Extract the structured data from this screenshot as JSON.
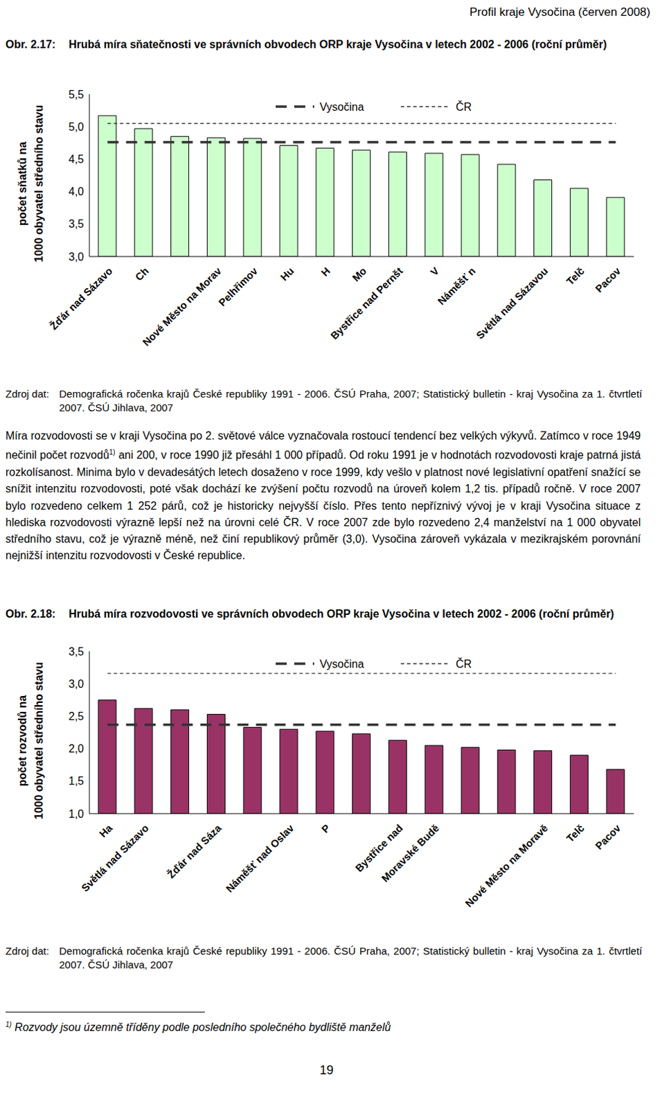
{
  "header": "Profil kraje Vysočina (červen 2008)",
  "chart_data": [
    {
      "type": "bar",
      "title": "Obr. 2.17: Hrubá míra sňatečnosti ve správních obvodech ORP kraje Vysočina v letech 2002 - 2006 (roční průměr)",
      "y_label": [
        "počet sňatků na",
        "1000 obyvatel středního stavu"
      ],
      "categories": [
        "Žďár nad Sázavo",
        "Ch",
        null,
        "Nové Město na Morav",
        "Pelhřimov",
        "Hu",
        "H",
        "Mo",
        "Bystřice nad Pernšt",
        "V",
        "Náměšť n",
        null,
        "Světlá nad Sázavou",
        "Telč",
        "Pacov"
      ],
      "values": [
        5.17,
        4.97,
        4.85,
        4.83,
        4.82,
        4.71,
        4.67,
        4.64,
        4.61,
        4.59,
        4.57,
        4.42,
        4.18,
        4.05,
        3.91
      ],
      "color": "#ccffcc",
      "series": [
        {
          "name": "Vysočina",
          "type": "line",
          "line_style": "dashed",
          "color": "#333333",
          "values": [
            4.76,
            4.76,
            4.76,
            4.76,
            4.76,
            4.76,
            4.76,
            4.76,
            4.76,
            4.76,
            4.76,
            4.76,
            4.76,
            4.76,
            4.76
          ]
        },
        {
          "name": "ČR",
          "type": "line",
          "line_style": "dotted",
          "color": "#333333",
          "values": [
            5.05,
            5.05,
            5.05,
            5.05,
            5.05,
            5.05,
            5.05,
            5.05,
            5.05,
            5.05,
            5.05,
            5.05,
            5.05,
            5.05,
            5.05
          ]
        }
      ],
      "ylim": [
        3,
        5.5
      ],
      "yticks": [
        {
          "value": 3,
          "label": "3,0"
        },
        {
          "value": 3.5,
          "label": "3,5"
        },
        {
          "value": 4,
          "label": "4,0"
        },
        {
          "value": 4.5,
          "label": "4,5"
        },
        {
          "value": 5,
          "label": "5,0"
        },
        {
          "value": 5.5,
          "label": "5,5"
        }
      ],
      "grid": false,
      "legend": "top"
    },
    {
      "type": "bar",
      "title": "Obr. 2.18: Hrubá míra rozvodovosti ve správních obvodech ORP kraje Vysočina v letech 2002 - 2006 (roční průměr)",
      "y_label": [
        "počet rozvodů na",
        "1000 obyvatel středního stavu"
      ],
      "categories": [
        "Ha",
        "Světlá nad Sázavo",
        null,
        "Žďár nad Sáza",
        null,
        "Náměšť nad Oslav",
        "P",
        null,
        "Bystřice nad",
        "Moravské Budě",
        null,
        null,
        "Nové Město na Moravě",
        "Telč",
        "Pacov"
      ],
      "values": [
        2.75,
        2.62,
        2.6,
        2.53,
        2.33,
        2.3,
        2.27,
        2.23,
        2.13,
        2.05,
        2.02,
        1.98,
        1.97,
        1.9,
        1.68
      ],
      "color": "#993366",
      "series": [
        {
          "name": "Vysočina",
          "type": "line",
          "line_style": "dashed",
          "color": "#333333",
          "values": [
            2.37,
            2.37,
            2.37,
            2.37,
            2.37,
            2.37,
            2.37,
            2.37,
            2.37,
            2.37,
            2.37,
            2.37,
            2.37,
            2.37,
            2.37
          ]
        },
        {
          "name": "ČR",
          "type": "line",
          "line_style": "dotted",
          "color": "#333333",
          "values": [
            3.16,
            3.16,
            3.16,
            3.16,
            3.16,
            3.16,
            3.16,
            3.16,
            3.16,
            3.16,
            3.16,
            3.16,
            3.16,
            3.16,
            3.16
          ]
        }
      ],
      "ylim": [
        1,
        3.5
      ],
      "yticks": [
        {
          "value": 1,
          "label": "1,0"
        },
        {
          "value": 1.5,
          "label": "1,5"
        },
        {
          "value": 2,
          "label": "2,0"
        },
        {
          "value": 2.5,
          "label": "2,5"
        },
        {
          "value": 3,
          "label": "3,0"
        },
        {
          "value": 3.5,
          "label": "3,5"
        }
      ],
      "grid": false,
      "legend": "top"
    }
  ],
  "sources": [
    {
      "label": "Zdroj dat:",
      "text": "Demografická ročenka krajů České republiky 1991 - 2006. ČSÚ Praha, 2007; Statistický bulletin - kraj Vysočina za 1. čtvrtletí 2007. ČSÚ Jihlava, 2007"
    },
    {
      "label": "Zdroj dat:",
      "text": "Demografická ročenka krajů České republiky 1991 - 2006. ČSÚ Praha, 2007; Statistický bulletin - kraj Vysočina za 1. čtvrtletí 2007. ČSÚ Jihlava, 2007"
    }
  ],
  "paragraph": [
    "Míra rozvodovosti se v kraji Vysočina po 2. světové válce vyznačovala rostoucí tendencí bez velkých výkyvů. Zatímco v roce 1949 nečinil počet rozvodů",
    "1)",
    " ani 200, v roce 1990 již přesáhl 1 000 případů. Od roku 1991 je v hodnotách rozvodovosti kraje patrná jistá rozkolísanost. Minima bylo v devadesátých letech dosaženo v roce 1999, kdy vešlo v platnost nové legislativní opatření snažící se snížit intenzitu rozvodovosti, poté však dochází ke zvýšení počtu rozvodů na úroveň kolem 1,2 tis. případů ročně. V roce 2007 bylo rozvedeno celkem 1 252 párů, což je historicky nejvyšší číslo. Přes tento nepříznivý vývoj je v kraji Vysočina situace z hlediska rozvodovosti výrazně lepší než na úrovni celé ČR. V roce 2007 zde bylo rozvedeno 2,4 manželství na 1 000 obyvatel středního stavu, což je výrazně méně, než činí republikový průměr (3,0). Vysočina zároveň vykázala v mezikrajském porovnání nejnižší intenzitu rozvodovosti v České republice."
  ],
  "footnote": {
    "marker": "1)",
    "text": "Rozvody jsou územně tříděny podle posledního společného bydliště manželů"
  },
  "page_number": 19
}
